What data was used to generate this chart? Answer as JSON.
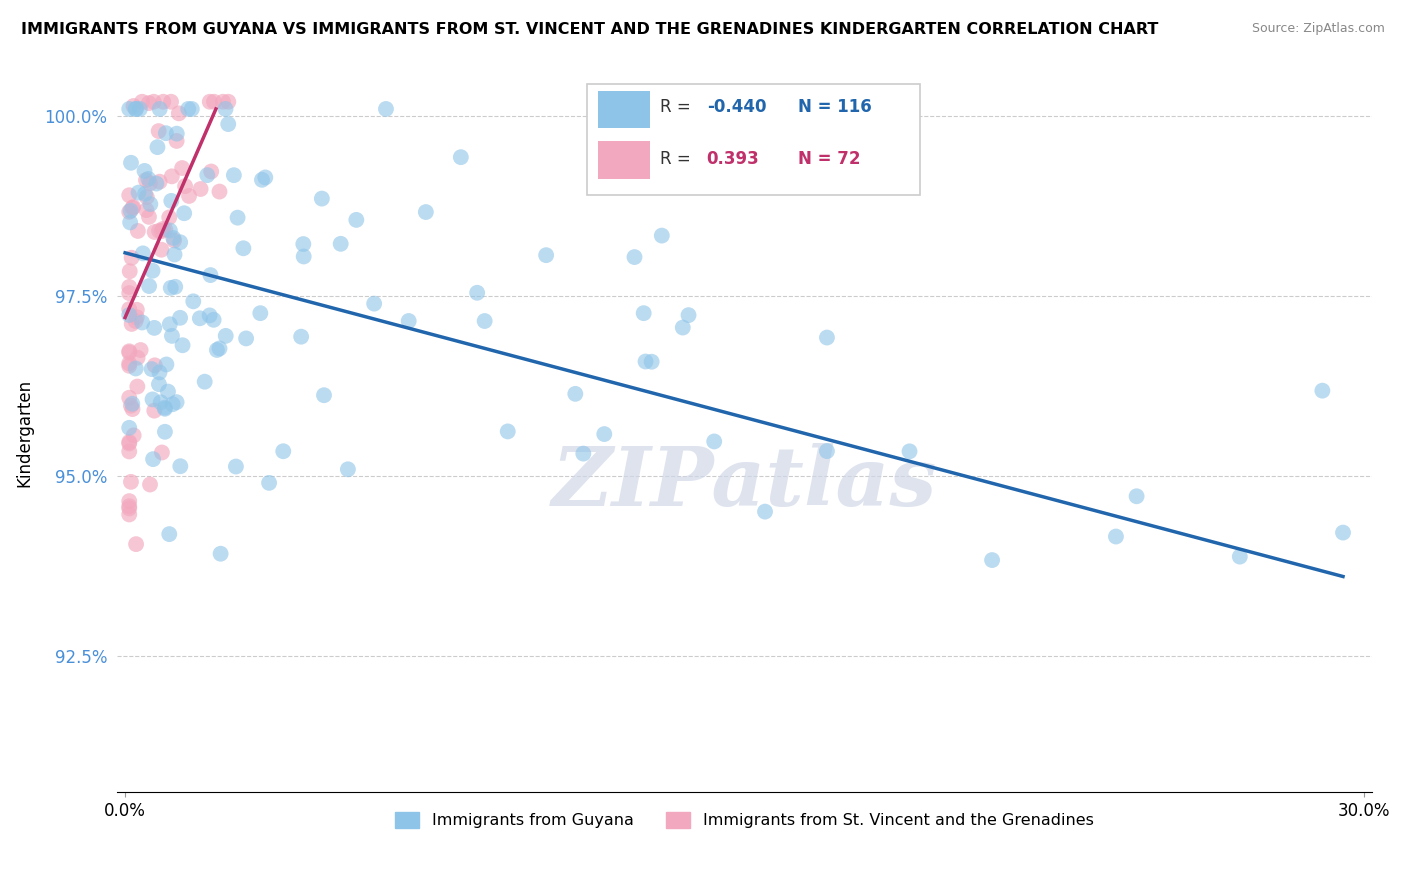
{
  "title": "IMMIGRANTS FROM GUYANA VS IMMIGRANTS FROM ST. VINCENT AND THE GRENADINES KINDERGARTEN CORRELATION CHART",
  "source_text": "Source: ZipAtlas.com",
  "ylabel": "Kindergarten",
  "xlim": [
    -0.002,
    0.302
  ],
  "ylim": [
    0.906,
    1.006
  ],
  "xticks": [
    0.0,
    0.3
  ],
  "xticklabels": [
    "0.0%",
    "30.0%"
  ],
  "yticks": [
    0.925,
    0.95,
    0.975,
    1.0
  ],
  "yticklabels": [
    "92.5%",
    "95.0%",
    "97.5%",
    "100.0%"
  ],
  "blue_color": "#8ec4e8",
  "pink_color": "#f2a8be",
  "blue_line_color": "#2166ac",
  "pink_line_color": "#c0306a",
  "blue_R": -0.44,
  "blue_N": 116,
  "pink_R": 0.393,
  "pink_N": 72,
  "watermark": "ZIPatlas",
  "legend_label_blue": "Immigrants from Guyana",
  "legend_label_pink": "Immigrants from St. Vincent and the Grenadines",
  "blue_line_x0": 0.0,
  "blue_line_y0": 0.981,
  "blue_line_x1": 0.295,
  "blue_line_y1": 0.936,
  "pink_line_x0": 0.0,
  "pink_line_y0": 0.972,
  "pink_line_x1": 0.022,
  "pink_line_y1": 1.001
}
